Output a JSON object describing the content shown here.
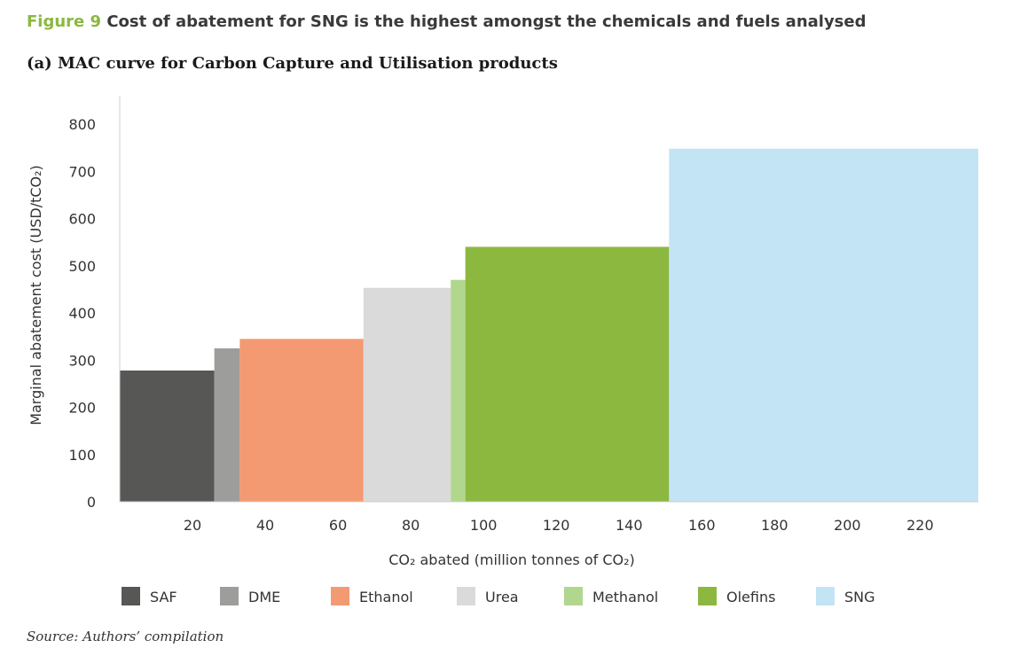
{
  "figure": {
    "number": "Figure 9",
    "title": "Cost of abatement for SNG is the highest amongst the chemicals and fuels analysed",
    "subtitle": "(a) MAC curve for Carbon Capture and Utilisation products",
    "source": "Source: Authors’ compilation"
  },
  "chart_data": {
    "type": "bar",
    "variant": "marginal abatement cost curve (variable-width bars)",
    "xlabel": "CO₂ abated (million tonnes of CO₂)",
    "ylabel": "Marginal abatement cost (USD/tCO₂)",
    "xlim": [
      0,
      236
    ],
    "ylim": [
      0,
      800
    ],
    "x_ticks": [
      20,
      40,
      60,
      80,
      100,
      120,
      140,
      160,
      180,
      200,
      220
    ],
    "y_ticks": [
      0,
      100,
      200,
      300,
      400,
      500,
      600,
      700,
      800
    ],
    "grid": false,
    "legend_position": "bottom",
    "series": [
      {
        "name": "SAF",
        "x_start": 0,
        "x_end": 26,
        "value": 278,
        "color": "#575756"
      },
      {
        "name": "DME",
        "x_start": 26,
        "x_end": 33,
        "value": 325,
        "color": "#9d9d9c"
      },
      {
        "name": "Ethanol",
        "x_start": 33,
        "x_end": 67,
        "value": 345,
        "color": "#f39a72"
      },
      {
        "name": "Urea",
        "x_start": 67,
        "x_end": 91,
        "value": 453,
        "color": "#dadadb"
      },
      {
        "name": "Methanol",
        "x_start": 91,
        "x_end": 95,
        "value": 470,
        "color": "#b1d68e"
      },
      {
        "name": "Olefins",
        "x_start": 95,
        "x_end": 151,
        "value": 540,
        "color": "#8cb83f"
      },
      {
        "name": "SNG",
        "x_start": 151,
        "x_end": 236,
        "value": 748,
        "color": "#c3e4f4"
      }
    ]
  }
}
